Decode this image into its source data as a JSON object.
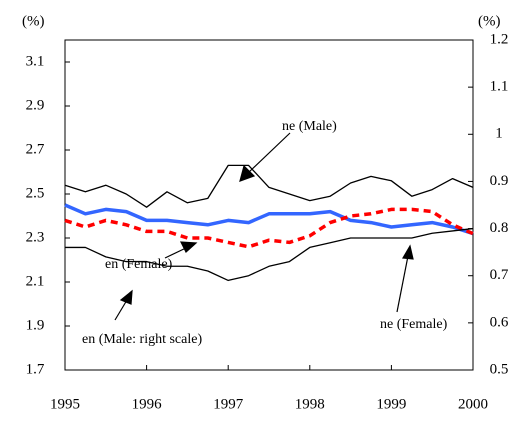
{
  "chart_data": {
    "type": "line",
    "y_label": "(%)",
    "y2_label": "(%)",
    "x": [
      1995,
      1995.25,
      1995.5,
      1995.75,
      1996,
      1996.25,
      1996.5,
      1996.75,
      1997,
      1997.25,
      1997.5,
      1997.75,
      1998,
      1998.25,
      1998.5,
      1998.75,
      1999,
      1999.25,
      1999.5,
      1999.75,
      2000
    ],
    "xlim": [
      1995,
      2000
    ],
    "xticks": [
      1995,
      1996,
      1997,
      1998,
      1999,
      2000
    ],
    "ylim": [
      1.7,
      3.2
    ],
    "yticks": [
      1.7,
      1.9,
      2.1,
      2.3,
      2.5,
      2.7,
      2.9,
      3.1
    ],
    "y2lim": [
      0.5,
      1.2
    ],
    "y2ticks": [
      0.5,
      0.6,
      0.7,
      0.8,
      0.9,
      1.0,
      1.1,
      1.2
    ],
    "series": [
      {
        "name": "ne (Male)",
        "color": "#000000",
        "style": "solid",
        "width": 1.3,
        "values": [
          2.54,
          2.51,
          2.54,
          2.5,
          2.44,
          2.51,
          2.46,
          2.48,
          2.63,
          2.63,
          2.53,
          2.5,
          2.47,
          2.49,
          2.55,
          2.58,
          2.56,
          2.49,
          2.52,
          2.57,
          2.53
        ]
      },
      {
        "name": "ne (Female)",
        "color": "#3366ff",
        "style": "solid",
        "width": 3.5,
        "values": [
          2.45,
          2.41,
          2.43,
          2.42,
          2.38,
          2.38,
          2.37,
          2.36,
          2.38,
          2.37,
          2.41,
          2.41,
          2.41,
          2.42,
          2.38,
          2.37,
          2.35,
          2.36,
          2.37,
          2.35,
          2.32
        ]
      },
      {
        "name": "en (Female)",
        "color": "#ff0000",
        "style": "dashed",
        "width": 3.5,
        "values": [
          2.38,
          2.35,
          2.38,
          2.36,
          2.33,
          2.33,
          2.3,
          2.3,
          2.28,
          2.26,
          2.29,
          2.28,
          2.31,
          2.37,
          2.4,
          2.41,
          2.43,
          2.43,
          2.42,
          2.36,
          2.32
        ]
      },
      {
        "name": "en (Male: right scale)",
        "color": "#000000",
        "style": "solid",
        "width": 1.3,
        "axis": "y2",
        "values": [
          0.76,
          0.76,
          0.74,
          0.73,
          0.73,
          0.72,
          0.72,
          0.71,
          0.69,
          0.7,
          0.72,
          0.73,
          0.76,
          0.77,
          0.78,
          0.78,
          0.78,
          0.78,
          0.79,
          0.795,
          0.8
        ]
      }
    ]
  }
}
